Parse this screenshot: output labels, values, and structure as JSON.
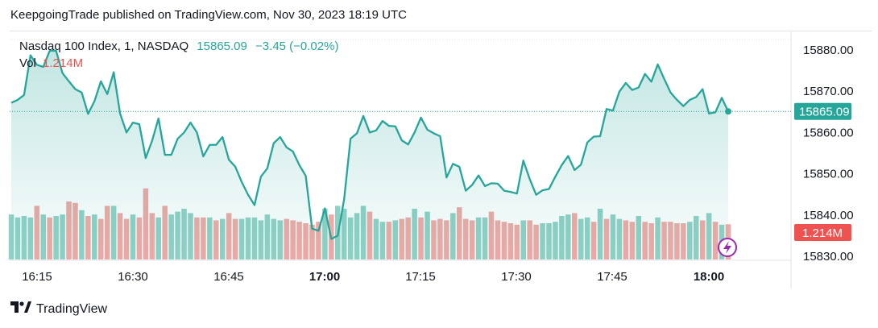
{
  "header": {
    "published": "KeepgoingTrade published on TradingView.com, Nov 30, 2023 18:19 UTC"
  },
  "legend": {
    "symbol": "Nasdaq 100 Index, 1, NASDAQ",
    "last": "15865.09",
    "change": "−3.45 (−0.02%)",
    "vol_label": "Vol",
    "vol_value": "1.214M"
  },
  "footer": {
    "brand": "TradingView"
  },
  "colors": {
    "line": "#26a69a",
    "up_vol": "#8fd1c5",
    "down_vol": "#efa9a6",
    "price_tag": "#26a69a",
    "vol_tag": "#ef5350"
  },
  "chart_data": {
    "type": "area",
    "y_ticks": [
      "15880.00",
      "15870.00",
      "15860.00",
      "15850.00",
      "15840.00",
      "15830.00"
    ],
    "y_tick_values": [
      15880,
      15870,
      15860,
      15850,
      15840,
      15830
    ],
    "x_ticks": [
      "16:15",
      "16:30",
      "16:45",
      "17:00",
      "17:15",
      "17:30",
      "17:45",
      "18:00"
    ],
    "x_tick_bold": [
      false,
      false,
      false,
      true,
      false,
      false,
      false,
      true
    ],
    "ylim": [
      15830,
      15885
    ],
    "x_minutes_range": [
      16.0,
      18.08
    ],
    "price_tag": "15865.09",
    "vol_tag": "1.214M",
    "close": [
      15867.2,
      15867.9,
      15869.1,
      15878.7,
      15876.4,
      15875.9,
      15879.8,
      15879.8,
      15874.4,
      15872.4,
      15870.5,
      15869.7,
      15864.5,
      15867.6,
      15872.4,
      15869.3,
      15874.6,
      15864.6,
      15860.0,
      15862.4,
      15862.0,
      15853.8,
      15858.0,
      15863.4,
      15854.6,
      15854.6,
      15858.5,
      15860.0,
      15862.4,
      15860.0,
      15854.2,
      15857.0,
      15857.0,
      15858.9,
      15853.4,
      15851.7,
      15848.0,
      15844.9,
      15842.4,
      15849.3,
      15851.3,
      15857.4,
      15858.9,
      15856.4,
      15855.4,
      15852.1,
      15849.5,
      15836.7,
      15836.2,
      15841.6,
      15834.2,
      15835.0,
      15843.8,
      15858.5,
      15859.8,
      15864.0,
      15860.0,
      15860.5,
      15862.8,
      15861.6,
      15861.5,
      15858.1,
      15857.1,
      15860.0,
      15863.6,
      15860.7,
      15859.8,
      15859.1,
      15849.1,
      15852.4,
      15851.7,
      15845.9,
      15847.3,
      15849.6,
      15847.0,
      15847.7,
      15847.6,
      15845.9,
      15845.6,
      15845.2,
      15853.2,
      15848.7,
      15844.9,
      15846.0,
      15846.3,
      15849.3,
      15852.1,
      15854.3,
      15850.9,
      15852.2,
      15857.6,
      15859.0,
      15859.1,
      15865.7,
      15865.3,
      15869.9,
      15872.0,
      15870.3,
      15870.9,
      15874.2,
      15872.3,
      15876.5,
      15873.0,
      15869.7,
      15867.9,
      15866.4,
      15867.9,
      15868.6,
      15870.5,
      15864.6,
      15864.9,
      15868.4,
      15865.1
    ],
    "volume": [
      1.55,
      1.45,
      1.5,
      1.45,
      1.85,
      1.55,
      1.45,
      1.5,
      1.55,
      2.0,
      1.95,
      1.7,
      1.5,
      1.55,
      1.4,
      1.85,
      1.85,
      1.6,
      1.4,
      1.55,
      1.45,
      2.45,
      1.6,
      1.45,
      1.85,
      1.55,
      1.65,
      1.75,
      1.6,
      1.45,
      1.45,
      1.45,
      1.35,
      1.4,
      1.6,
      1.4,
      1.4,
      1.45,
      1.45,
      1.35,
      1.55,
      1.4,
      1.35,
      1.4,
      1.35,
      1.3,
      1.25,
      1.2,
      1.3,
      1.75,
      1.55,
      1.85,
      1.75,
      1.45,
      1.6,
      1.85,
      1.65,
      1.4,
      1.3,
      1.3,
      1.35,
      1.4,
      1.45,
      1.75,
      1.45,
      1.65,
      1.35,
      1.4,
      1.35,
      1.6,
      1.8,
      1.4,
      1.35,
      1.45,
      1.45,
      1.65,
      1.35,
      1.3,
      1.25,
      1.2,
      1.35,
      1.35,
      1.2,
      1.25,
      1.25,
      1.3,
      1.5,
      1.55,
      1.6,
      1.4,
      1.45,
      1.3,
      1.75,
      1.4,
      1.55,
      1.4,
      1.35,
      1.3,
      1.5,
      1.3,
      1.25,
      1.45,
      1.3,
      1.3,
      1.25,
      1.25,
      1.3,
      1.5,
      1.35,
      1.6,
      1.3,
      1.2,
      1.214
    ],
    "volume_up": [
      true,
      true,
      true,
      true,
      false,
      true,
      false,
      true,
      true,
      false,
      false,
      true,
      false,
      true,
      false,
      false,
      true,
      false,
      false,
      true,
      false,
      false,
      false,
      true,
      false,
      true,
      true,
      true,
      true,
      false,
      false,
      true,
      false,
      true,
      false,
      false,
      true,
      true,
      true,
      true,
      true,
      true,
      true,
      false,
      false,
      false,
      false,
      false,
      false,
      true,
      false,
      true,
      true,
      true,
      true,
      true,
      false,
      true,
      true,
      false,
      true,
      false,
      false,
      true,
      false,
      true,
      false,
      false,
      false,
      true,
      false,
      false,
      false,
      true,
      true,
      false,
      false,
      false,
      false,
      false,
      true,
      false,
      false,
      true,
      true,
      true,
      true,
      true,
      false,
      true,
      true,
      false,
      true,
      false,
      true,
      true,
      false,
      false,
      true,
      false,
      false,
      true,
      false,
      false,
      false,
      false,
      true,
      true,
      false,
      true,
      false,
      true,
      false
    ]
  }
}
